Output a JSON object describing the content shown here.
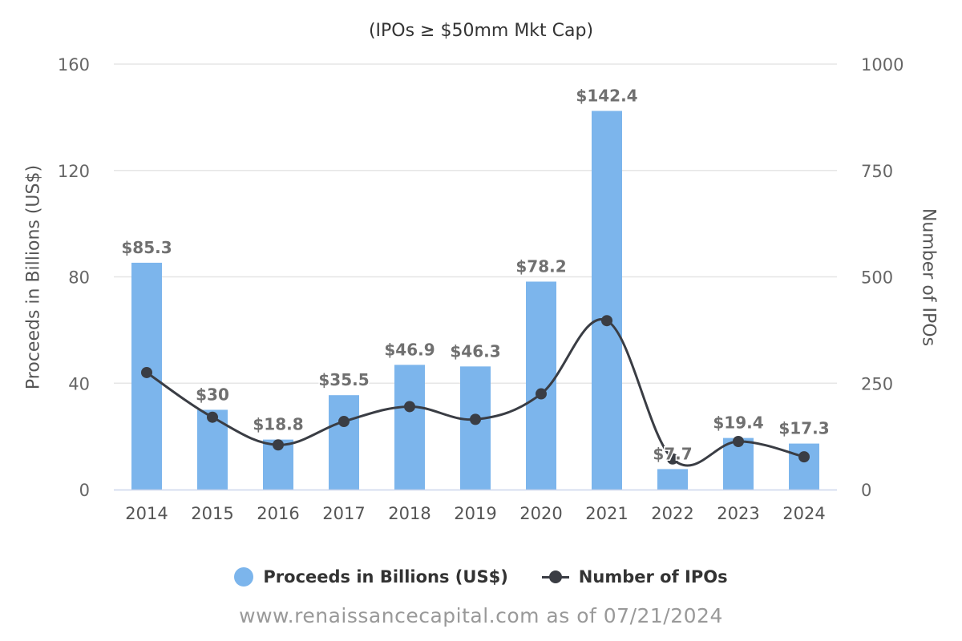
{
  "chart_data": {
    "type": "bar",
    "subtitle": "(IPOs ≥ $50mm Mkt Cap)",
    "categories": [
      "2014",
      "2015",
      "2016",
      "2017",
      "2018",
      "2019",
      "2020",
      "2021",
      "2022",
      "2023",
      "2024"
    ],
    "series": [
      {
        "name": "Proceeds in Billions (US$)",
        "type": "bar",
        "axis": "left",
        "color": "#7cb5ec",
        "values": [
          85.3,
          30,
          18.8,
          35.5,
          46.9,
          46.3,
          78.2,
          142.4,
          7.7,
          19.4,
          17.3
        ],
        "labels": [
          "$85.3",
          "$30",
          "$18.8",
          "$35.5",
          "$46.9",
          "$46.3",
          "$78.2",
          "$142.4",
          "$7.7",
          "$19.4",
          "$17.3"
        ]
      },
      {
        "name": "Number of IPOs",
        "type": "line",
        "axis": "right",
        "color": "#3a3d44",
        "values": [
          275,
          170,
          105,
          160,
          195,
          165,
          225,
          397,
          72,
          113,
          77
        ]
      }
    ],
    "ylabel": "Proceeds in Billions (US$)",
    "ylim": [
      0,
      160
    ],
    "yticks": [
      "0",
      "40",
      "80",
      "120",
      "160"
    ],
    "y2label": "Number of IPOs",
    "y2lim": [
      0,
      1000
    ],
    "y2ticks": [
      "0",
      "250",
      "500",
      "750",
      "1000"
    ],
    "grid": true,
    "legend": "bottom-center"
  },
  "credit": "www.renaissancecapital.com as of 07/21/2024"
}
